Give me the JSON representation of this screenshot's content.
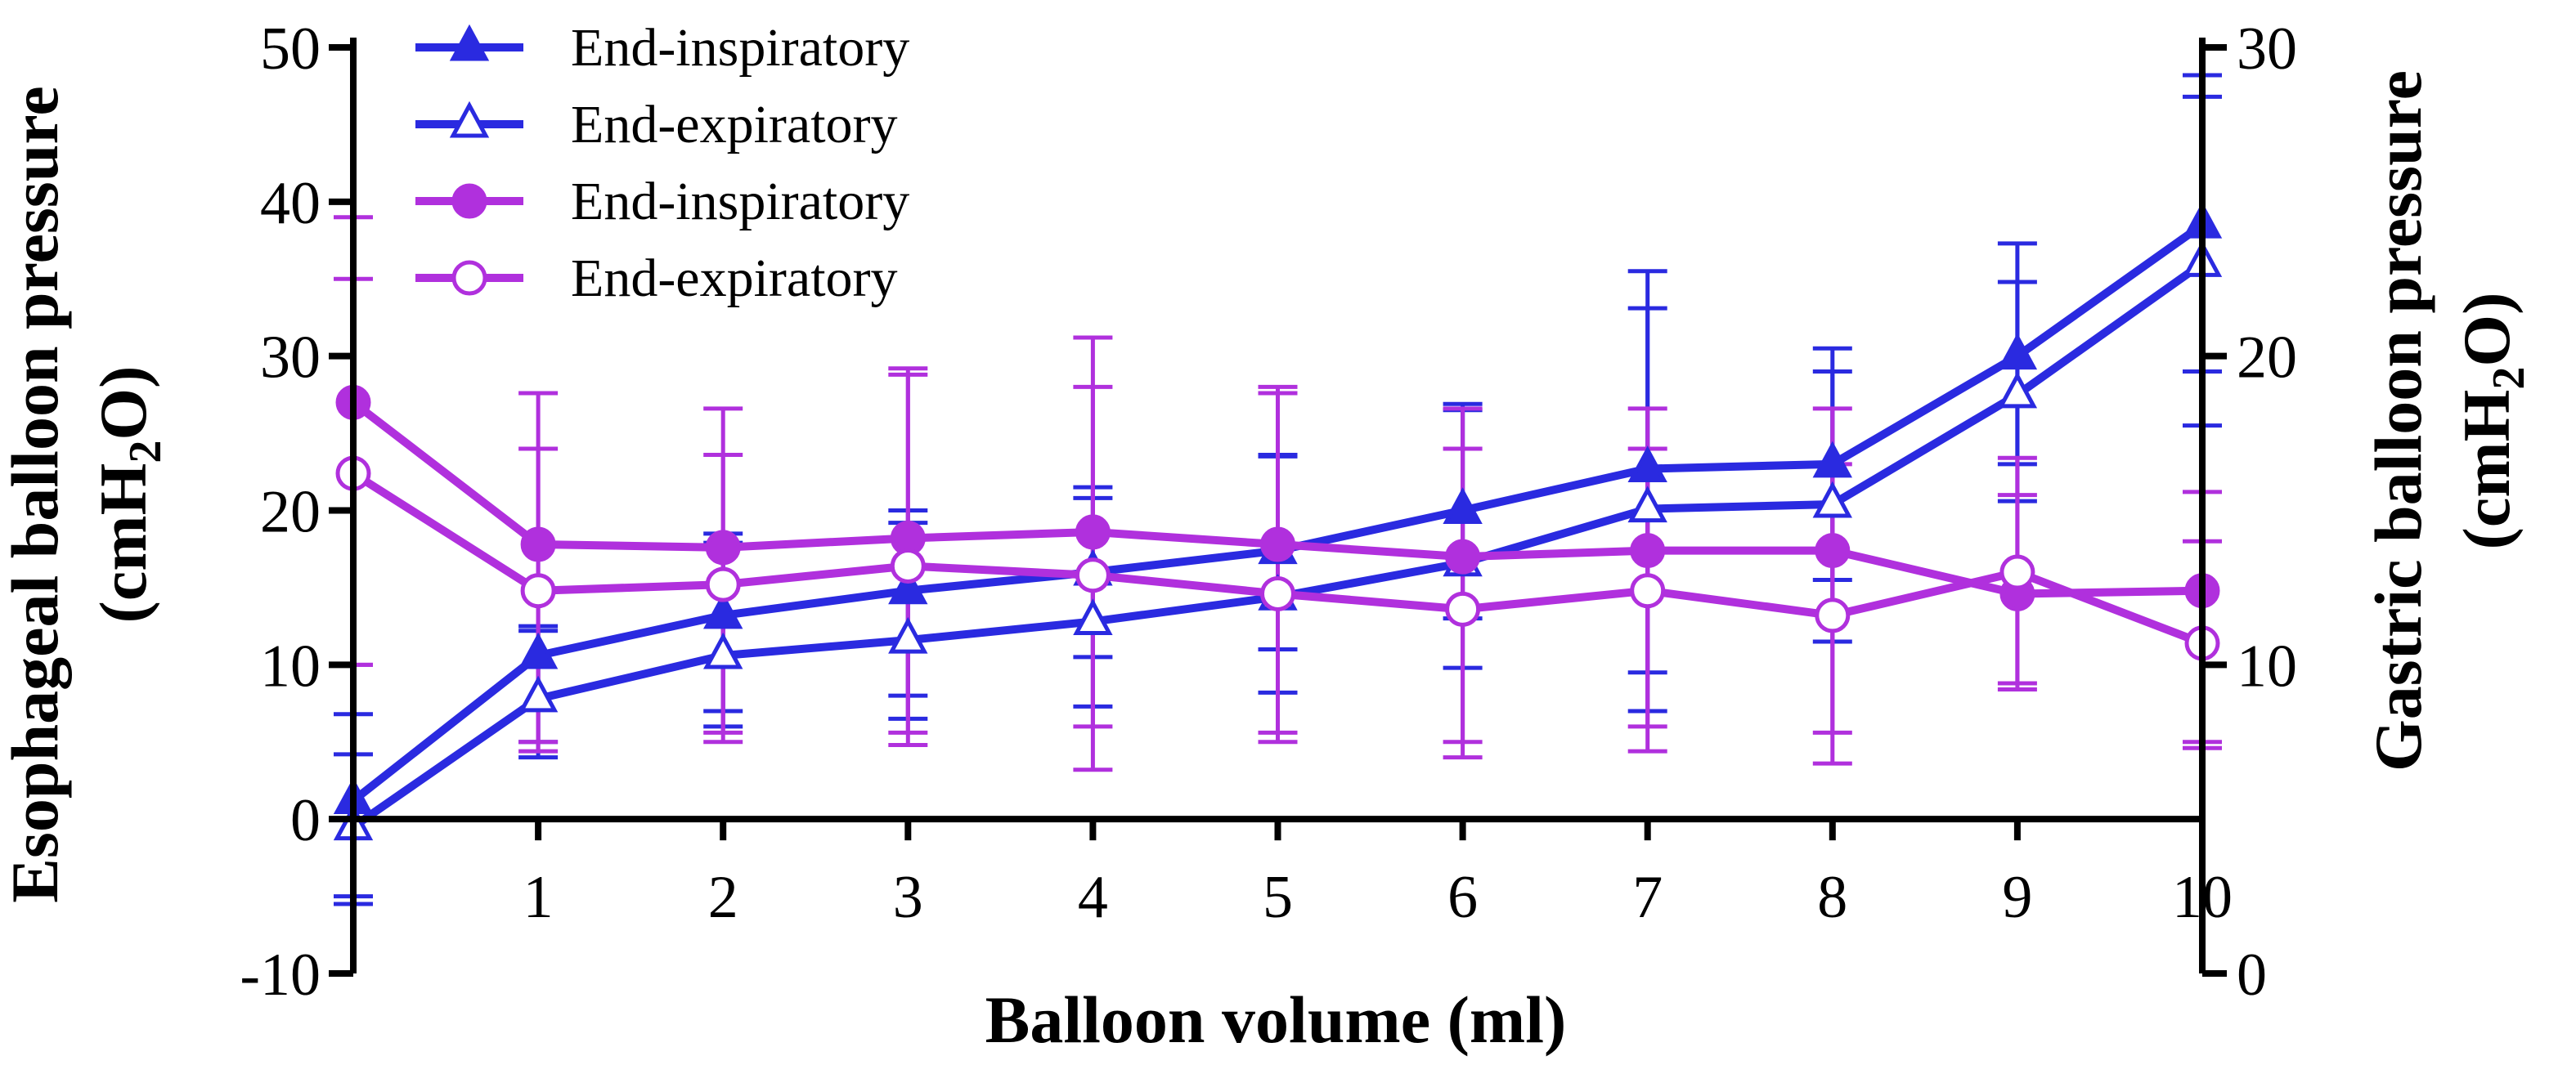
{
  "chart_data": {
    "type": "line",
    "title": "",
    "xlabel": "Balloon  volume (ml)",
    "ylabel_left_line1": "Esophageal balloon pressure",
    "ylabel_left_unit_prefix": "(cmH",
    "ylabel_left_unit_sub": "2",
    "ylabel_left_unit_suffix": "O)",
    "ylabel_right_line1": "Gastric balloon pressure",
    "ylabel_right_unit_prefix": "(cmH",
    "ylabel_right_unit_sub": "2",
    "ylabel_right_unit_suffix": "O)",
    "xlim": [
      0,
      10
    ],
    "ylim_left": [
      -10,
      50
    ],
    "ylim_right": [
      0,
      30
    ],
    "x_ticks": [
      1,
      2,
      3,
      4,
      5,
      6,
      7,
      8,
      9,
      10
    ],
    "x_tick_labels": [
      "1",
      "2",
      "3",
      "4",
      "5",
      "6",
      "7",
      "8",
      "9",
      "10"
    ],
    "y_left_ticks": [
      -10,
      0,
      10,
      20,
      30,
      40,
      50
    ],
    "y_left_tick_labels": [
      "-10",
      "0",
      "10",
      "20",
      "30",
      "40",
      "50"
    ],
    "y_right_ticks": [
      0,
      10,
      20,
      30
    ],
    "y_right_tick_labels": [
      "0",
      "10",
      "20",
      "30"
    ],
    "legend_position": "top-left",
    "x": [
      0,
      1,
      2,
      3,
      4,
      5,
      6,
      7,
      8,
      9,
      10
    ],
    "series": [
      {
        "name": "End-inspiratory",
        "axis": "left",
        "marker": "triangle-filled",
        "color": "#2a2ae0",
        "values": [
          1.2,
          10.6,
          13.2,
          14.8,
          16.0,
          17.4,
          20.0,
          22.7,
          23.0,
          30.0,
          38.5
        ],
        "err_low": [
          -5.5,
          5.0,
          7.0,
          8.0,
          10.5,
          11.0,
          13.0,
          9.5,
          15.5,
          23.0,
          29.0
        ],
        "err_high": [
          6.8,
          12.5,
          18.5,
          20.0,
          21.5,
          23.6,
          26.9,
          35.5,
          30.5,
          37.3,
          48.2
        ]
      },
      {
        "name": "End-expiratory",
        "axis": "left",
        "marker": "triangle-open",
        "color": "#2a2ae0",
        "values": [
          -0.5,
          7.8,
          10.6,
          11.6,
          12.8,
          14.4,
          16.6,
          20.1,
          20.4,
          27.5,
          36.0
        ],
        "err_low": [
          -5.0,
          4.0,
          6.0,
          6.5,
          7.3,
          8.2,
          9.8,
          7.0,
          11.5,
          20.6,
          25.5
        ],
        "err_high": [
          4.2,
          12.2,
          17.9,
          19.2,
          20.8,
          23.5,
          26.5,
          33.1,
          29.0,
          34.8,
          46.8
        ]
      },
      {
        "name": "End-inspiratory",
        "axis": "right",
        "marker": "circle-filled",
        "color": "#b030dd",
        "values": [
          18.5,
          13.9,
          13.8,
          14.1,
          14.3,
          13.9,
          13.5,
          13.7,
          13.7,
          12.3,
          12.4
        ],
        "err_low": [
          10.0,
          7.5,
          7.8,
          7.8,
          8.0,
          7.8,
          7.5,
          8.0,
          7.8,
          9.4,
          7.5
        ],
        "err_high": [
          24.5,
          18.8,
          18.3,
          19.6,
          20.6,
          19.0,
          18.3,
          18.3,
          18.3,
          15.5,
          15.6
        ]
      },
      {
        "name": "End-expiratory",
        "axis": "right",
        "marker": "circle-open",
        "color": "#b030dd",
        "values": [
          16.2,
          12.4,
          12.6,
          13.2,
          12.9,
          12.3,
          11.8,
          12.4,
          11.6,
          13.0,
          10.7
        ],
        "err_low": [
          10.0,
          7.2,
          7.5,
          7.4,
          6.6,
          7.5,
          7.0,
          7.2,
          6.8,
          9.2,
          7.3
        ],
        "err_high": [
          22.5,
          17.0,
          16.8,
          19.4,
          19.0,
          18.8,
          17.0,
          17.0,
          16.5,
          16.7,
          14.0
        ]
      }
    ]
  }
}
